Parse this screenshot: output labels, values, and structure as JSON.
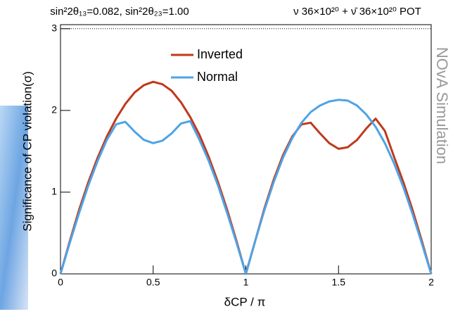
{
  "chart_data": {
    "type": "line",
    "title_left": "sin²2θ₁₃=0.082, sin²2θ₂₃=1.00",
    "title_right": "ν 36×10²⁰ + ν̄ 36×10²⁰ POT",
    "watermark": "NOvA Simulation",
    "x_label": "δCP / π",
    "y_label": "Significance of CP violation(σ)",
    "x": [
      0,
      0.05,
      0.1,
      0.15,
      0.2,
      0.25,
      0.3,
      0.35,
      0.4,
      0.45,
      0.5,
      0.55,
      0.6,
      0.65,
      0.7,
      0.75,
      0.8,
      0.85,
      0.9,
      0.95,
      1,
      1.05,
      1.1,
      1.15,
      1.2,
      1.25,
      1.3,
      1.35,
      1.4,
      1.45,
      1.5,
      1.55,
      1.6,
      1.65,
      1.7,
      1.75,
      1.8,
      1.85,
      1.9,
      1.95,
      2
    ],
    "series": [
      {
        "name": "Inverted",
        "color": "#c0391b",
        "values": [
          0,
          0.4,
          0.78,
          1.12,
          1.42,
          1.68,
          1.9,
          2.08,
          2.22,
          2.31,
          2.35,
          2.32,
          2.24,
          2.1,
          1.92,
          1.7,
          1.43,
          1.12,
          0.78,
          0.4,
          0,
          0.4,
          0.8,
          1.15,
          1.45,
          1.68,
          1.83,
          1.85,
          1.72,
          1.6,
          1.53,
          1.55,
          1.64,
          1.78,
          1.9,
          1.75,
          1.43,
          1.12,
          0.78,
          0.4,
          0
        ]
      },
      {
        "name": "Normal",
        "color": "#4fa3e6",
        "values": [
          0,
          0.38,
          0.74,
          1.08,
          1.38,
          1.64,
          1.83,
          1.86,
          1.74,
          1.64,
          1.6,
          1.63,
          1.72,
          1.84,
          1.87,
          1.64,
          1.38,
          1.08,
          0.74,
          0.38,
          0,
          0.4,
          0.78,
          1.12,
          1.42,
          1.66,
          1.85,
          1.98,
          2.06,
          2.11,
          2.13,
          2.12,
          2.06,
          1.95,
          1.8,
          1.6,
          1.35,
          1.06,
          0.73,
          0.37,
          0
        ]
      }
    ],
    "xlim": [
      0,
      2
    ],
    "xticks": [
      0,
      0.5,
      1,
      1.5,
      2
    ],
    "ylim": [
      0,
      3.05
    ],
    "yticks": [
      0,
      1,
      2,
      3
    ],
    "reference_line": 3,
    "legend": "upper center"
  }
}
